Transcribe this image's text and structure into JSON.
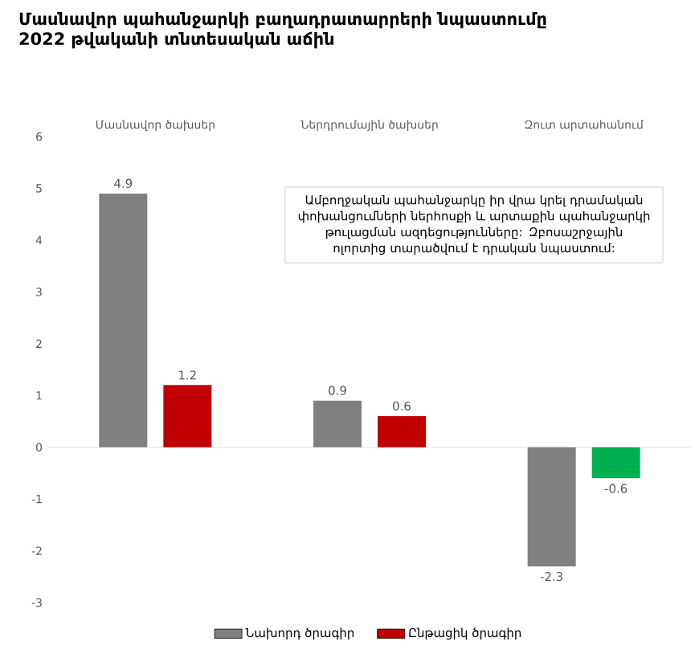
{
  "chart_data": {
    "type": "bar",
    "title": "Մասնավոր պահանջարկի բաղադրատարրերի նպաստումը 2022 թվականի տնտեսական աճին",
    "categories": [
      "Մասնավոր ծախսեր",
      "Ներդրումային ծախսեր",
      "Զուտ արտահանում"
    ],
    "series": [
      {
        "name": "Նախորդ ծրագիր",
        "color": "#808080",
        "values": [
          4.9,
          0.9,
          -2.3
        ]
      },
      {
        "name": "Ընթացիկ ծրագիր",
        "color": "#c00000",
        "colors": [
          "#c00000",
          "#c00000",
          "#00b050"
        ],
        "values": [
          1.2,
          0.6,
          -0.6
        ]
      }
    ],
    "ylim": [
      -3,
      6
    ],
    "yticks": [
      -3,
      -2,
      -1,
      0,
      1,
      2,
      3,
      4,
      5,
      6
    ],
    "data_labels": true,
    "legend": "bottom",
    "annotations": [
      "Ամբողջական պահանջարկը իր վրա կրել դրամական փոխանցումների ներհոսքի և արտաքին պահանջարկի թուլացման ազդեցությունները: Զբոսաշրջային ոլորտից տարածվում է դրական նպաստում:"
    ]
  }
}
